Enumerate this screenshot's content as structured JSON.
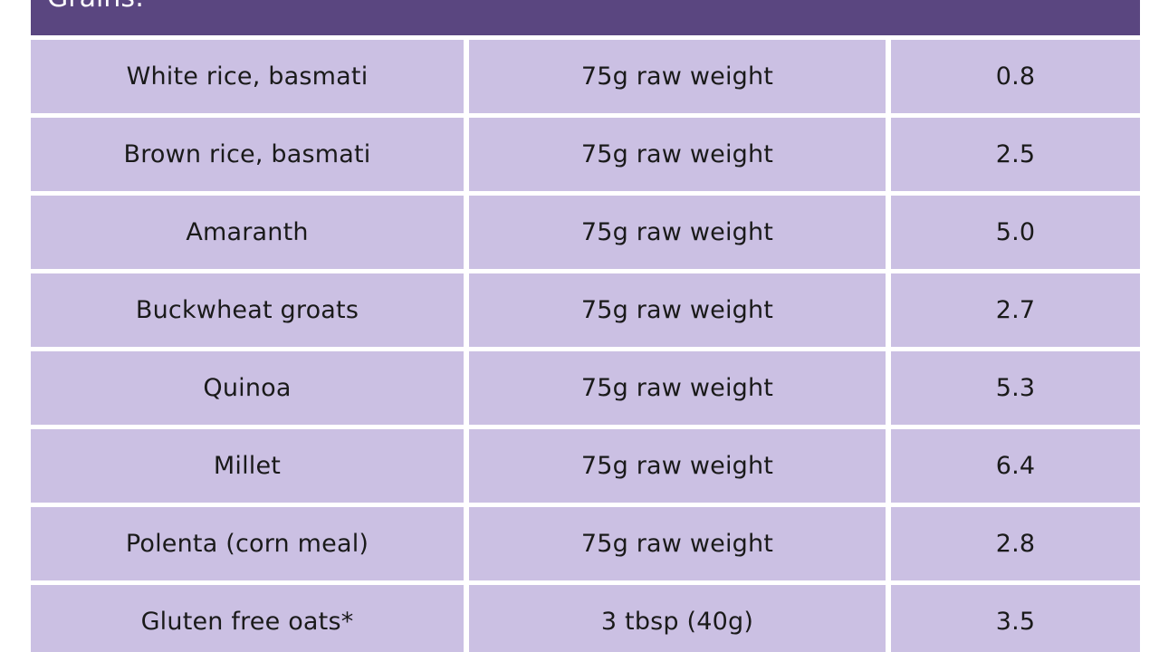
{
  "header": {
    "title": "Grains:"
  },
  "table": {
    "rows": [
      {
        "food": "White rice, basmati",
        "portion": "75g raw weight",
        "value": "0.8"
      },
      {
        "food": "Brown rice, basmati",
        "portion": "75g raw weight",
        "value": "2.5"
      },
      {
        "food": "Amaranth",
        "portion": "75g raw weight",
        "value": "5.0"
      },
      {
        "food": "Buckwheat groats",
        "portion": "75g raw weight",
        "value": "2.7"
      },
      {
        "food": "Quinoa",
        "portion": "75g raw weight",
        "value": "5.3"
      },
      {
        "food": "Millet",
        "portion": "75g raw weight",
        "value": "6.4"
      },
      {
        "food": "Polenta (corn meal)",
        "portion": "75g raw weight",
        "value": "2.8"
      },
      {
        "food": "Gluten free oats*",
        "portion": "3 tbsp (40g)",
        "value": "3.5"
      }
    ]
  },
  "colors": {
    "header_bg": "#5a4680",
    "cell_bg": "#cbc0e3",
    "text": "#1a1a1a"
  }
}
